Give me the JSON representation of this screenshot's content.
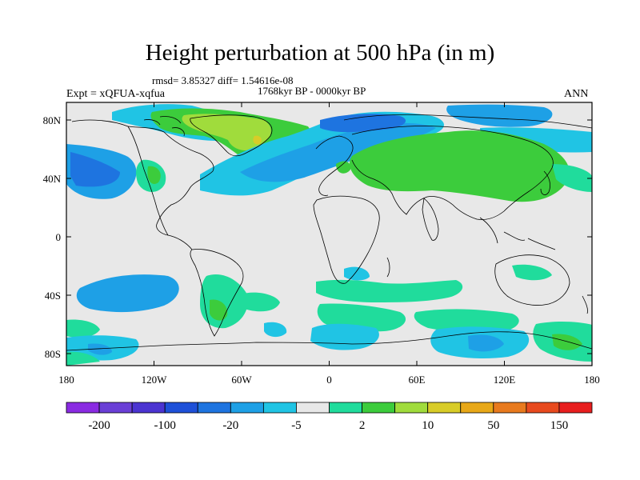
{
  "figure": {
    "title": "Height perturbation at 500 hPa (in m)",
    "stats": "rmsd= 3.85327 diff= 1.54616e-08",
    "period": "1768kyr BP - 0000kyr BP",
    "experiment": "Expt = xQFUA-xqfua",
    "season": "ANN"
  },
  "axes": {
    "lat_labels": [
      "80N",
      "40N",
      "0",
      "40S",
      "80S"
    ],
    "lon_labels": [
      "180",
      "120W",
      "60W",
      "0",
      "60E",
      "120E",
      "180"
    ]
  },
  "colorbar": {
    "colors": [
      "#8a2be2",
      "#6a3fd6",
      "#4b34d1",
      "#1e50d8",
      "#1e74e0",
      "#1ea0e6",
      "#20c4e4",
      "#e8e8e8",
      "#20dc9c",
      "#3ccc3c",
      "#a0dc3c",
      "#d8cc28",
      "#e8a818",
      "#e87a1e",
      "#e84a1e",
      "#e81e1e"
    ],
    "labels": [
      "-200",
      "-100",
      "-20",
      "-5",
      "2",
      "10",
      "50",
      "150"
    ]
  },
  "colors": {
    "background_field": "#e8e8e8",
    "coastline": "#000000"
  }
}
